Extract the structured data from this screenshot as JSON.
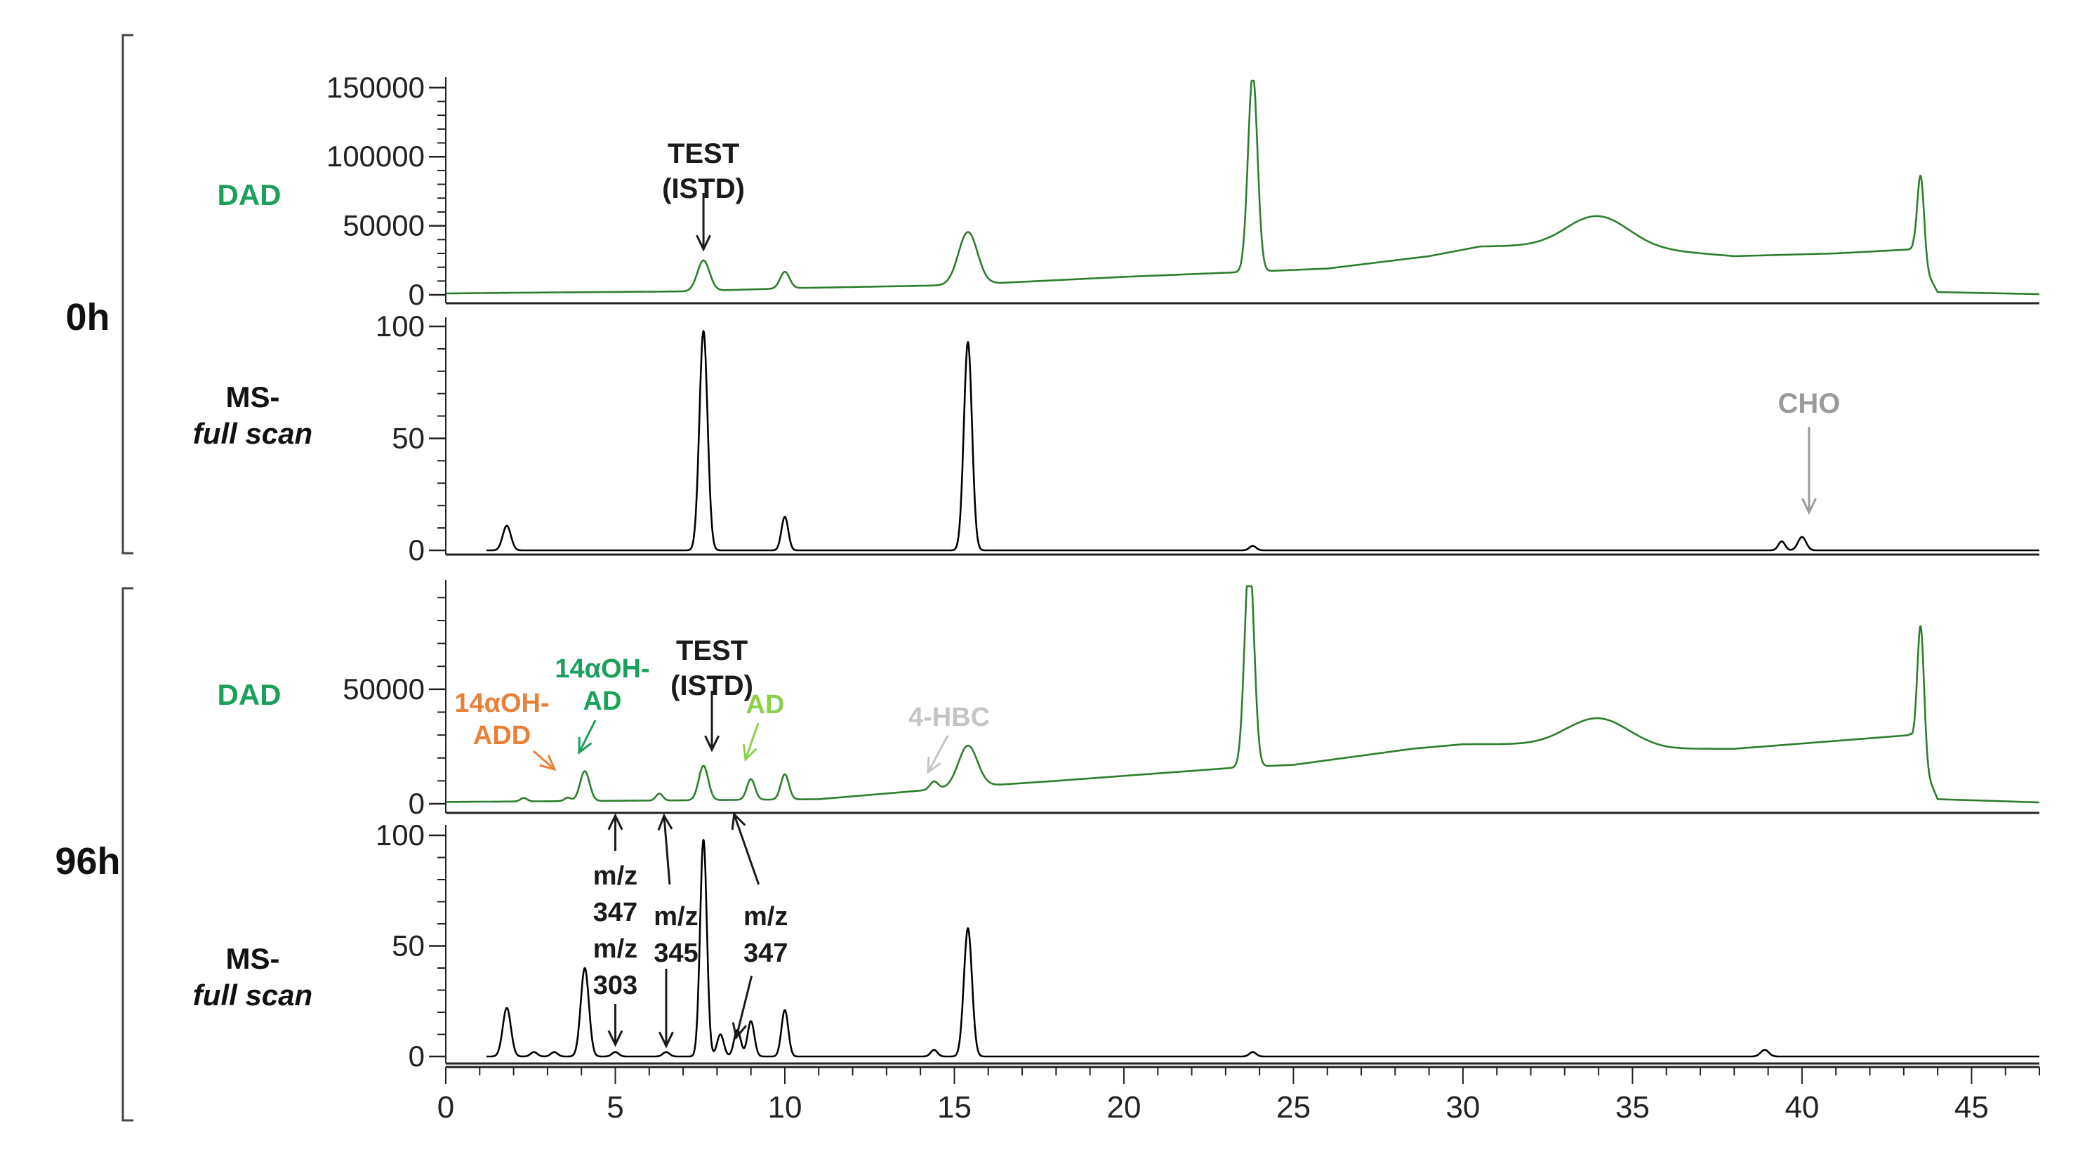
{
  "figure": {
    "groups": [
      {
        "label": "0h"
      },
      {
        "label": "96h"
      }
    ],
    "panel_labels": {
      "dad": "DAD",
      "ms_line1": "MS-",
      "ms_line2": "full scan"
    }
  },
  "colors": {
    "dad_trace": "#2e7d2e",
    "ms_trace": "#000000",
    "dad_label": "#1aa05a",
    "annotation_black": "#1a1a1a",
    "annotation_orange": "#e8803a",
    "annotation_teal": "#1aa05a",
    "annotation_lightgreen": "#8ccf4a",
    "annotation_gray": "#9a9a9a",
    "annotation_lightgray": "#c4c4c4"
  },
  "chart_data": [
    {
      "id": "dad_0h",
      "type": "line",
      "xlim": [
        0,
        47
      ],
      "ylim": [
        0,
        155000
      ],
      "yticks": [
        0,
        50000,
        100000,
        150000
      ],
      "ytick_labels": [
        "0",
        "50000",
        "100000",
        "150000"
      ],
      "peaks": [
        {
          "x": 7.6,
          "y": 22000,
          "w": 0.18
        },
        {
          "x": 10.0,
          "y": 12000,
          "w": 0.14
        },
        {
          "x": 15.4,
          "y": 38000,
          "w": 0.28
        },
        {
          "x": 23.8,
          "y": 143000,
          "w": 0.14
        },
        {
          "x": 34.0,
          "y": 22000,
          "w": 0.9
        },
        {
          "x": 43.5,
          "y": 62000,
          "w": 0.1
        }
      ],
      "baseline": [
        [
          0,
          1000
        ],
        [
          2.0,
          1500
        ],
        [
          7.0,
          2500
        ],
        [
          10.5,
          5000
        ],
        [
          15.0,
          7000
        ],
        [
          20.0,
          13000
        ],
        [
          26.0,
          19000
        ],
        [
          29.0,
          28000
        ],
        [
          30.5,
          35000
        ],
        [
          33.3,
          36000
        ],
        [
          36.0,
          32000
        ],
        [
          38.0,
          28000
        ],
        [
          41.0,
          30000
        ],
        [
          43.3,
          33000
        ],
        [
          44.0,
          2000
        ],
        [
          47,
          500
        ]
      ],
      "annotations": [
        {
          "text": [
            "TEST",
            "(ISTD)"
          ],
          "x": 7.6,
          "y": 22000,
          "color": "annotation_black"
        }
      ]
    },
    {
      "id": "ms_0h",
      "type": "line",
      "xlim": [
        0,
        47
      ],
      "ylim": [
        0,
        100
      ],
      "yticks": [
        0,
        50,
        100
      ],
      "ytick_labels": [
        "0",
        "50",
        "100"
      ],
      "peaks": [
        {
          "x": 1.8,
          "y": 11,
          "w": 0.12
        },
        {
          "x": 7.6,
          "y": 98,
          "w": 0.12
        },
        {
          "x": 10.0,
          "y": 15,
          "w": 0.1
        },
        {
          "x": 15.4,
          "y": 93,
          "w": 0.12
        },
        {
          "x": 23.8,
          "y": 2,
          "w": 0.1
        },
        {
          "x": 39.4,
          "y": 4,
          "w": 0.1
        },
        {
          "x": 40.0,
          "y": 6,
          "w": 0.12
        }
      ],
      "baseline": [
        [
          1.2,
          0
        ],
        [
          47,
          0
        ]
      ],
      "annotations": [
        {
          "text": [
            "CHO"
          ],
          "x": 40.0,
          "y": 6,
          "color": "annotation_gray"
        }
      ]
    },
    {
      "id": "dad_96h",
      "type": "line",
      "xlim": [
        0,
        47
      ],
      "ylim": [
        0,
        95000
      ],
      "yticks": [
        0,
        50000
      ],
      "ytick_labels": [
        "0",
        "50000"
      ],
      "peaks": [
        {
          "x": 2.3,
          "y": 1500,
          "w": 0.1
        },
        {
          "x": 3.6,
          "y": 1500,
          "w": 0.1
        },
        {
          "x": 4.1,
          "y": 13000,
          "w": 0.14
        },
        {
          "x": 6.3,
          "y": 3000,
          "w": 0.1
        },
        {
          "x": 7.6,
          "y": 15000,
          "w": 0.14
        },
        {
          "x": 9.0,
          "y": 9000,
          "w": 0.12
        },
        {
          "x": 10.0,
          "y": 11000,
          "w": 0.12
        },
        {
          "x": 14.4,
          "y": 3500,
          "w": 0.12
        },
        {
          "x": 15.4,
          "y": 18000,
          "w": 0.28
        },
        {
          "x": 23.7,
          "y": 92000,
          "w": 0.14
        },
        {
          "x": 34.0,
          "y": 12000,
          "w": 0.9
        },
        {
          "x": 43.5,
          "y": 58000,
          "w": 0.1
        }
      ],
      "baseline": [
        [
          0,
          800
        ],
        [
          7.0,
          1500
        ],
        [
          11.0,
          2000
        ],
        [
          15.0,
          7000
        ],
        [
          18.0,
          10000
        ],
        [
          23.5,
          16000
        ],
        [
          25.0,
          17000
        ],
        [
          28.5,
          24000
        ],
        [
          30.0,
          26000
        ],
        [
          33.0,
          26000
        ],
        [
          36.0,
          24000
        ],
        [
          38.0,
          24000
        ],
        [
          43.2,
          30000
        ],
        [
          44.0,
          2000
        ],
        [
          47,
          600
        ]
      ],
      "annotations": [
        {
          "text": [
            "14αOH-",
            "ADD"
          ],
          "x": 3.5,
          "y": 1500,
          "color": "annotation_orange"
        },
        {
          "text": [
            "14αOH-",
            "AD"
          ],
          "x": 4.1,
          "y": 13000,
          "color": "annotation_teal"
        },
        {
          "text": [
            "TEST",
            "(ISTD)"
          ],
          "x": 7.6,
          "y": 15000,
          "color": "annotation_black"
        },
        {
          "text": [
            "AD"
          ],
          "x": 9.0,
          "y": 9000,
          "color": "annotation_lightgreen"
        },
        {
          "text": [
            "4-HBC"
          ],
          "x": 14.6,
          "y": 3500,
          "color": "annotation_lightgray"
        }
      ]
    },
    {
      "id": "ms_96h",
      "type": "line",
      "xlim": [
        0,
        47
      ],
      "ylim": [
        0,
        100
      ],
      "yticks": [
        0,
        50,
        100
      ],
      "ytick_labels": [
        "0",
        "50",
        "100"
      ],
      "peaks": [
        {
          "x": 1.8,
          "y": 22,
          "w": 0.12
        },
        {
          "x": 2.6,
          "y": 2,
          "w": 0.1
        },
        {
          "x": 3.2,
          "y": 2,
          "w": 0.1
        },
        {
          "x": 4.1,
          "y": 40,
          "w": 0.12
        },
        {
          "x": 5.0,
          "y": 2,
          "w": 0.1
        },
        {
          "x": 6.5,
          "y": 2,
          "w": 0.1
        },
        {
          "x": 7.6,
          "y": 98,
          "w": 0.1
        },
        {
          "x": 8.1,
          "y": 10,
          "w": 0.1
        },
        {
          "x": 8.6,
          "y": 12,
          "w": 0.1
        },
        {
          "x": 9.0,
          "y": 16,
          "w": 0.1
        },
        {
          "x": 10.0,
          "y": 21,
          "w": 0.1
        },
        {
          "x": 14.4,
          "y": 3,
          "w": 0.1
        },
        {
          "x": 15.4,
          "y": 58,
          "w": 0.12
        },
        {
          "x": 23.8,
          "y": 2,
          "w": 0.1
        },
        {
          "x": 38.9,
          "y": 3,
          "w": 0.12
        }
      ],
      "baseline": [
        [
          1.2,
          0
        ],
        [
          47,
          0
        ]
      ],
      "xticks": [
        0,
        5,
        10,
        15,
        20,
        25,
        30,
        35,
        40,
        45
      ],
      "xtick_labels": [
        "0",
        "5",
        "10",
        "15",
        "20",
        "25",
        "30",
        "35",
        "40",
        "45"
      ],
      "annotations": [
        {
          "text": [
            "m/z",
            "347",
            "m/z",
            "303"
          ],
          "x": 5.0,
          "color": "annotation_black"
        },
        {
          "text": [
            "m/z",
            "345"
          ],
          "x": 6.5,
          "color": "annotation_black"
        },
        {
          "text": [
            "m/z",
            "347"
          ],
          "x": 8.4,
          "color": "annotation_black"
        }
      ]
    }
  ]
}
